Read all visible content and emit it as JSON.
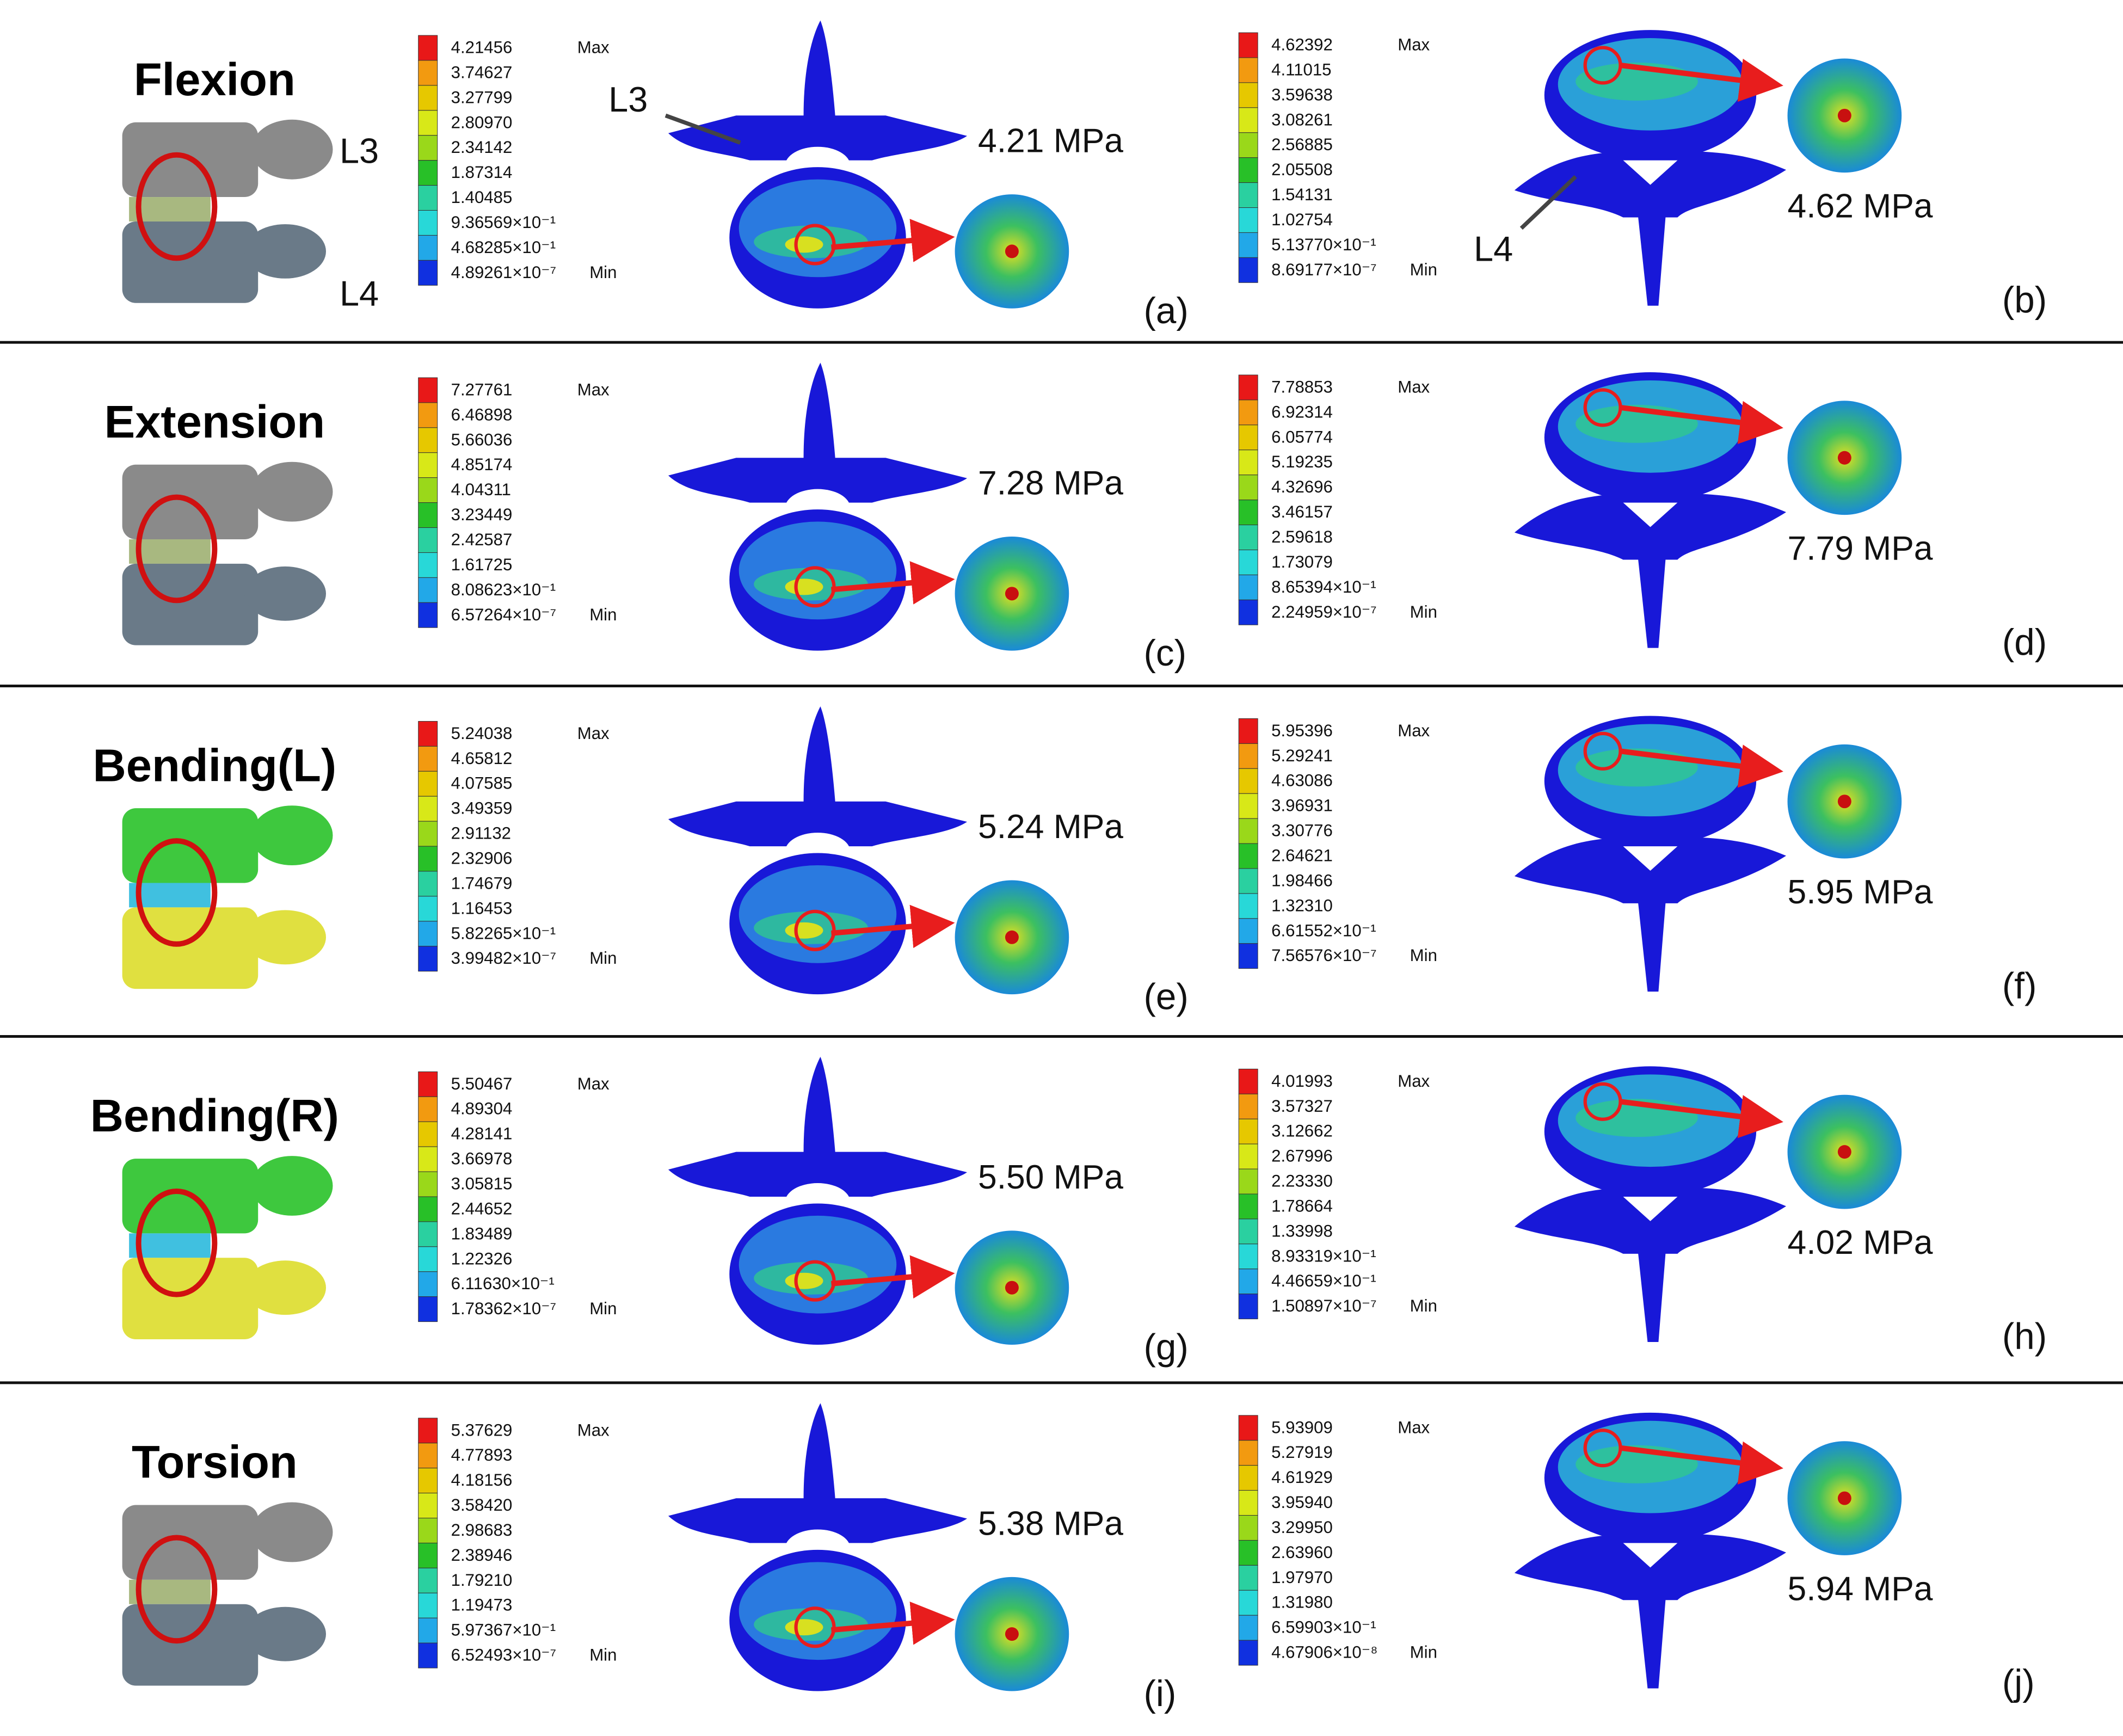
{
  "rows": [
    {
      "label": "Flexion",
      "icon_labels": [
        "L3",
        "L4"
      ],
      "panels": [
        {
          "legend": [
            "4.21456",
            "3.74627",
            "3.27799",
            "2.80970",
            "2.34142",
            "1.87314",
            "1.40485",
            "9.36569×10⁻¹",
            "4.68285×10⁻¹",
            "4.89261×10⁻⁷"
          ],
          "max_label": "Max",
          "min_label": "Min",
          "peak": "4.21 MPa",
          "letter": "(a)",
          "annotation": "L3"
        },
        {
          "legend": [
            "4.62392",
            "4.11015",
            "3.59638",
            "3.08261",
            "2.56885",
            "2.05508",
            "1.54131",
            "1.02754",
            "5.13770×10⁻¹",
            "8.69177×10⁻⁷"
          ],
          "max_label": "Max",
          "min_label": "Min",
          "peak": "4.62 MPa",
          "letter": "(b)",
          "annotation": "L4"
        }
      ]
    },
    {
      "label": "Extension",
      "panels": [
        {
          "legend": [
            "7.27761",
            "6.46898",
            "5.66036",
            "4.85174",
            "4.04311",
            "3.23449",
            "2.42587",
            "1.61725",
            "8.08623×10⁻¹",
            "6.57264×10⁻⁷"
          ],
          "max_label": "Max",
          "min_label": "Min",
          "peak": "7.28 MPa",
          "letter": "(c)"
        },
        {
          "legend": [
            "7.78853",
            "6.92314",
            "6.05774",
            "5.19235",
            "4.32696",
            "3.46157",
            "2.59618",
            "1.73079",
            "8.65394×10⁻¹",
            "2.24959×10⁻⁷"
          ],
          "max_label": "Max",
          "min_label": "Min",
          "peak": "7.79 MPa",
          "letter": "(d)"
        }
      ]
    },
    {
      "label": "Bending(L)",
      "panels": [
        {
          "legend": [
            "5.24038",
            "4.65812",
            "4.07585",
            "3.49359",
            "2.91132",
            "2.32906",
            "1.74679",
            "1.16453",
            "5.82265×10⁻¹",
            "3.99482×10⁻⁷"
          ],
          "max_label": "Max",
          "min_label": "Min",
          "peak": "5.24 MPa",
          "letter": "(e)"
        },
        {
          "legend": [
            "5.95396",
            "5.29241",
            "4.63086",
            "3.96931",
            "3.30776",
            "2.64621",
            "1.98466",
            "1.32310",
            "6.61552×10⁻¹",
            "7.56576×10⁻⁷"
          ],
          "max_label": "Max",
          "min_label": "Min",
          "peak": "5.95 MPa",
          "letter": "(f)"
        }
      ]
    },
    {
      "label": "Bending(R)",
      "panels": [
        {
          "legend": [
            "5.50467",
            "4.89304",
            "4.28141",
            "3.66978",
            "3.05815",
            "2.44652",
            "1.83489",
            "1.22326",
            "6.11630×10⁻¹",
            "1.78362×10⁻⁷"
          ],
          "max_label": "Max",
          "min_label": "Min",
          "peak": "5.50 MPa",
          "letter": "(g)"
        },
        {
          "legend": [
            "4.01993",
            "3.57327",
            "3.12662",
            "2.67996",
            "2.23330",
            "1.78664",
            "1.33998",
            "8.93319×10⁻¹",
            "4.46659×10⁻¹",
            "1.50897×10⁻⁷"
          ],
          "max_label": "Max",
          "min_label": "Min",
          "peak": "4.02 MPa",
          "letter": "(h)"
        }
      ]
    },
    {
      "label": "Torsion",
      "panels": [
        {
          "legend": [
            "5.37629",
            "4.77893",
            "4.18156",
            "3.58420",
            "2.98683",
            "2.38946",
            "1.79210",
            "1.19473",
            "5.97367×10⁻¹",
            "6.52493×10⁻⁷"
          ],
          "max_label": "Max",
          "min_label": "Min",
          "peak": "5.38 MPa",
          "letter": "(i)"
        },
        {
          "legend": [
            "5.93909",
            "5.27919",
            "4.61929",
            "3.95940",
            "3.29950",
            "2.63960",
            "1.97970",
            "1.31980",
            "6.59903×10⁻¹",
            "4.67906×10⁻⁸"
          ],
          "max_label": "Max",
          "min_label": "Min",
          "peak": "5.94 MPa",
          "letter": "(j)"
        }
      ]
    }
  ]
}
